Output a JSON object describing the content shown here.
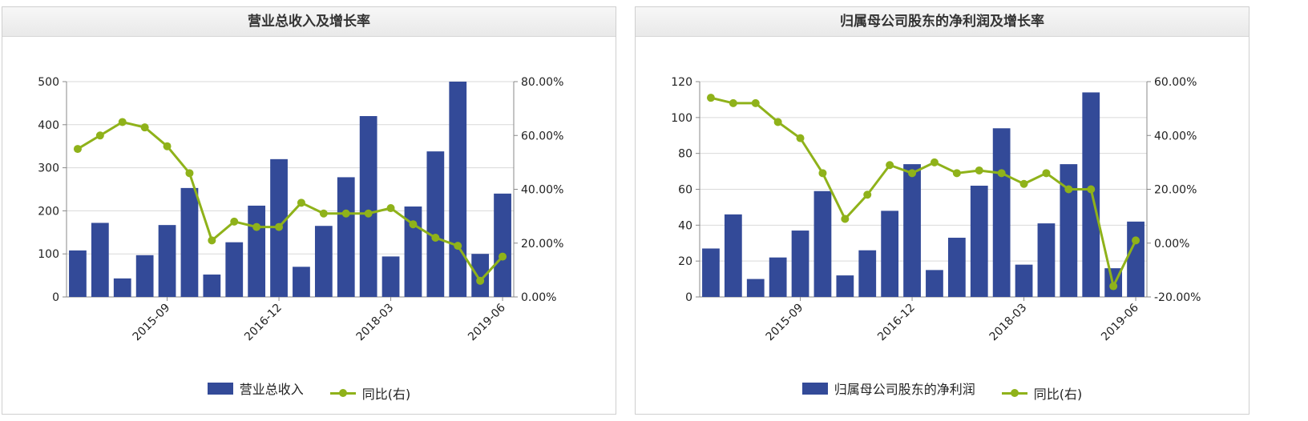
{
  "chart_data": [
    {
      "type": "bar",
      "title": "营业总收入及增长率",
      "x_tick_labels": [
        "2015-09",
        "2016-12",
        "2018-03",
        "2019-06"
      ],
      "x_tick_positions": [
        4,
        9,
        14,
        19
      ],
      "y_left_ticks": [
        "0",
        "100",
        "200",
        "300",
        "400",
        "500"
      ],
      "y_left_range": [
        0,
        500
      ],
      "y_right_ticks": [
        "0.00%",
        "20.00%",
        "40.00%",
        "60.00%",
        "80.00%"
      ],
      "y_right_range": [
        0,
        80
      ],
      "grid": true,
      "legend_position": "bottom",
      "series": [
        {
          "name": "营业总收入",
          "kind": "bar",
          "axis": "left",
          "values": [
            108,
            172,
            43,
            97,
            167,
            253,
            52,
            127,
            212,
            320,
            70,
            165,
            278,
            420,
            94,
            210,
            338,
            500,
            100,
            240
          ]
        },
        {
          "name": "同比(右)",
          "kind": "line",
          "axis": "right",
          "values": [
            55,
            60,
            65,
            63,
            56,
            46,
            21,
            28,
            26,
            26,
            35,
            31,
            31,
            31,
            33,
            27,
            22,
            19,
            6,
            15
          ]
        }
      ]
    },
    {
      "type": "bar",
      "title": "归属母公司股东的净利润及增长率",
      "x_tick_labels": [
        "2015-09",
        "2016-12",
        "2018-03",
        "2019-06"
      ],
      "x_tick_positions": [
        4,
        9,
        14,
        19
      ],
      "y_left_ticks": [
        "0",
        "20",
        "40",
        "60",
        "80",
        "100",
        "120"
      ],
      "y_left_range": [
        0,
        120
      ],
      "y_right_ticks": [
        "-20.00%",
        "0.00%",
        "20.00%",
        "40.00%",
        "60.00%"
      ],
      "y_right_range": [
        -20,
        60
      ],
      "grid": true,
      "legend_position": "bottom",
      "series": [
        {
          "name": "归属母公司股东的净利润",
          "kind": "bar",
          "axis": "left",
          "values": [
            27,
            46,
            10,
            22,
            37,
            59,
            12,
            26,
            48,
            74,
            15,
            33,
            62,
            94,
            18,
            41,
            74,
            114,
            16,
            42
          ]
        },
        {
          "name": "同比(右)",
          "kind": "line",
          "axis": "right",
          "values": [
            54,
            52,
            52,
            45,
            39,
            26,
            9,
            18,
            29,
            26,
            30,
            26,
            27,
            26,
            22,
            26,
            20,
            20,
            -16,
            1
          ]
        }
      ]
    }
  ],
  "colors": {
    "bar": "#334a98",
    "line": "#8fb21a",
    "grid": "#d9d9d9",
    "axis": "#888888"
  }
}
